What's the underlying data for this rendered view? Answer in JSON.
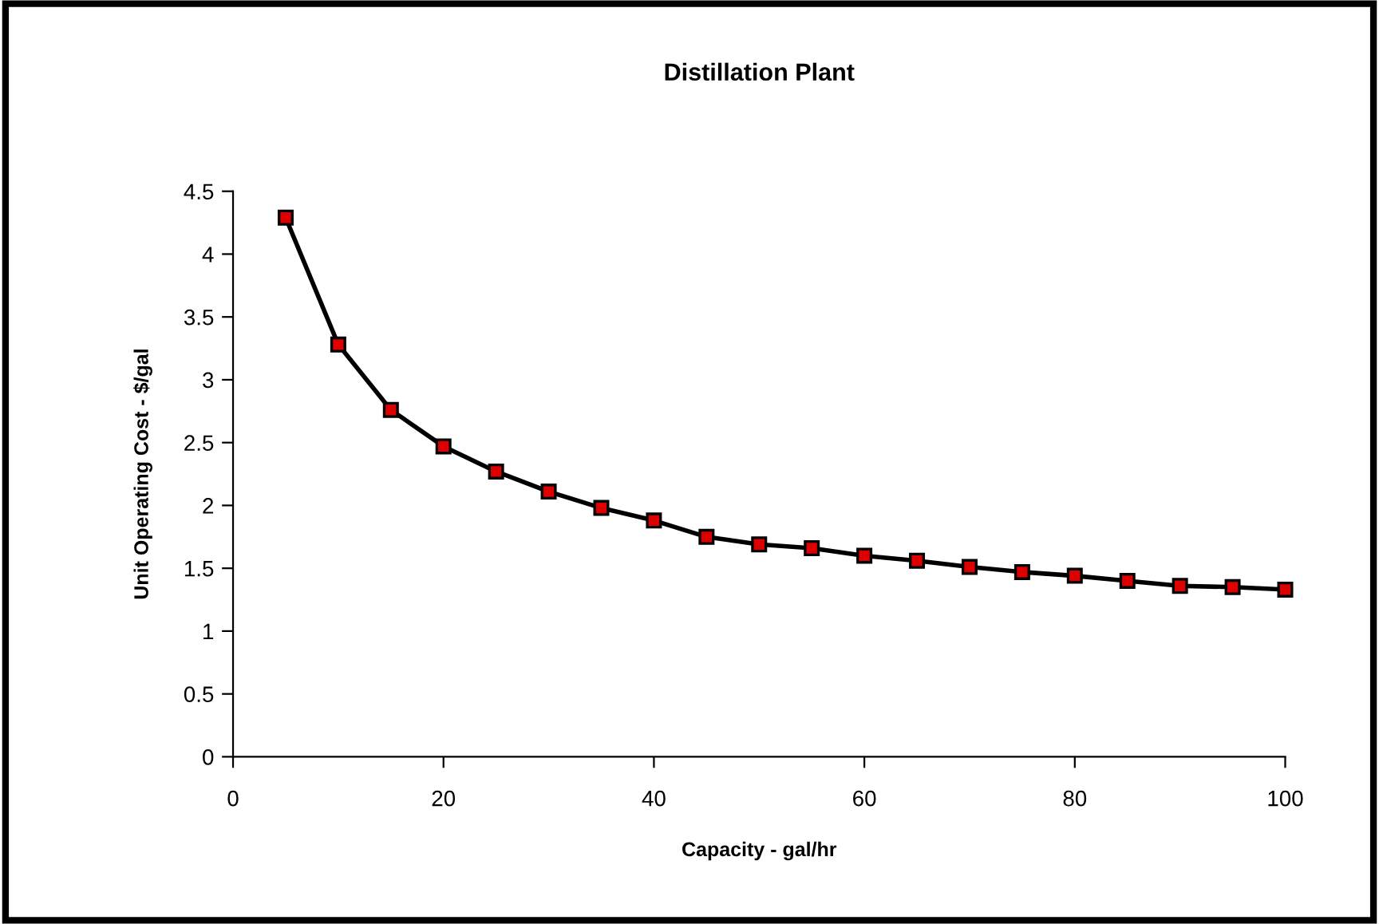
{
  "chart_data": {
    "type": "line",
    "title": "Distillation Plant",
    "xlabel": "Capacity - gal/hr",
    "ylabel": "Unit Operating Cost - $/gal",
    "x": [
      5,
      10,
      15,
      20,
      25,
      30,
      35,
      40,
      45,
      50,
      55,
      60,
      65,
      70,
      75,
      80,
      85,
      90,
      95,
      100
    ],
    "series": [
      {
        "color": "#000000",
        "values": [
          4.29,
          3.28,
          2.76,
          2.47,
          2.27,
          2.11,
          1.98,
          1.88,
          1.75,
          1.69,
          1.66,
          1.6,
          1.56,
          1.51,
          1.47,
          1.44,
          1.4,
          1.36,
          1.35,
          1.33
        ]
      }
    ],
    "xlim": [
      0,
      100
    ],
    "xticks": [
      0,
      20,
      40,
      60,
      80,
      100
    ],
    "ylim": [
      0,
      4.5
    ],
    "yticks": [
      0,
      0.5,
      1,
      1.5,
      2,
      2.5,
      3,
      3.5,
      4,
      4.5
    ],
    "marker": "square",
    "line_style": "solid",
    "grid": false,
    "legend": false
  }
}
